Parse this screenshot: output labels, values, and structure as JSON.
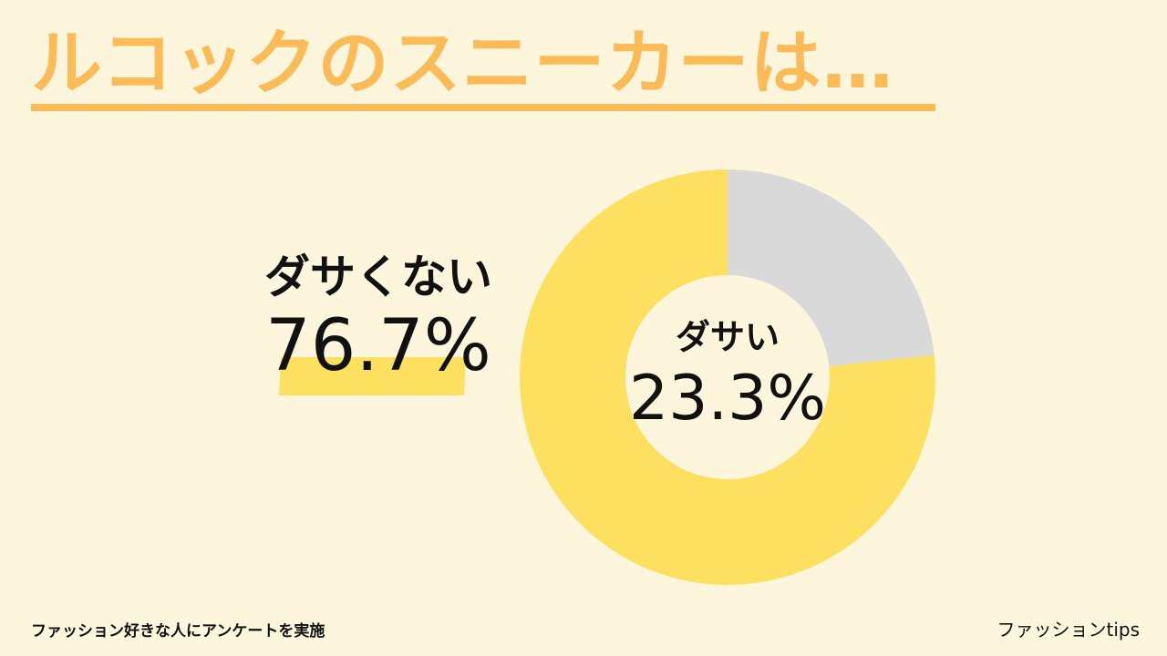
{
  "title": "ルコックのスニーカーは…",
  "colors": {
    "background": "#fdf6dd",
    "accent": "#fdbb58",
    "yellow": "#fde05f",
    "gray": "#d9d9d9",
    "text": "#111111"
  },
  "chart_data": {
    "type": "pie",
    "variant": "donut",
    "slices": [
      {
        "label": "ダサい",
        "value": 23.3,
        "display": "23.3%",
        "color": "#d9d9d9"
      },
      {
        "label": "ダサくない",
        "value": 76.7,
        "display": "76.7%",
        "color": "#fde05f"
      }
    ]
  },
  "footnote": "ファッション好きな人にアンケートを実施",
  "brand": "ファッションtips"
}
